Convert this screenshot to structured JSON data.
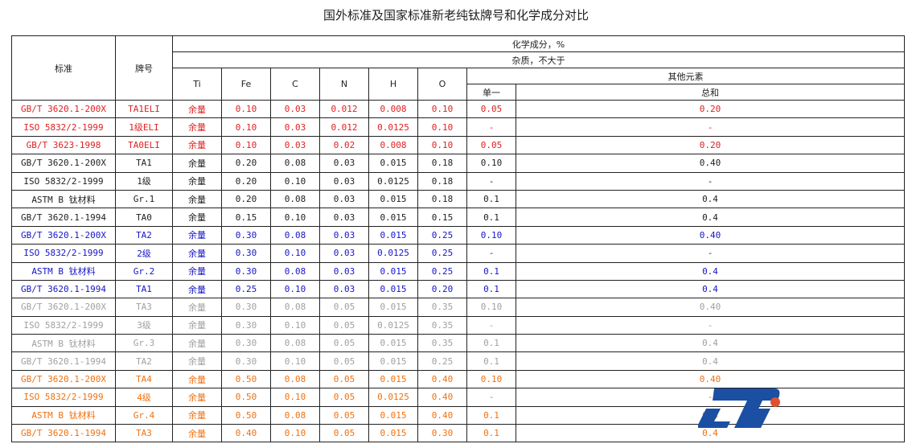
{
  "title": "国外标准及国家标准新老纯钛牌号和化学成分对比",
  "headers": {
    "standard": "标准",
    "grade": "牌号",
    "chem": "化学成分，%",
    "impurity": "杂质，不大于",
    "ti": "Ti",
    "fe": "Fe",
    "c": "C",
    "n": "N",
    "h": "H",
    "o": "O",
    "others": "其他元素",
    "single": "单一",
    "total": "总和"
  },
  "colors": {
    "red": "#e02020",
    "blue": "#1515c8",
    "gray": "#a0a0a0",
    "orange": "#f07010",
    "black": "#222222"
  },
  "rows": [
    [
      "red",
      "GB/T 3620.1-200X",
      "TA1ELI",
      "余量",
      "0.10",
      "0.03",
      "0.012",
      "0.008",
      "0.10",
      "0.05",
      "0.20"
    ],
    [
      "red",
      "ISO 5832/2-1999",
      "1级ELI",
      "余量",
      "0.10",
      "0.03",
      "0.012",
      "0.0125",
      "0.10",
      "-",
      "-"
    ],
    [
      "red",
      "GB/T 3623-1998",
      "TA0ELI",
      "余量",
      "0.10",
      "0.03",
      "0.02",
      "0.008",
      "0.10",
      "0.05",
      "0.20"
    ],
    [
      "black",
      "GB/T 3620.1-200X",
      "TA1",
      "余量",
      "0.20",
      "0.08",
      "0.03",
      "0.015",
      "0.18",
      "0.10",
      "0.40"
    ],
    [
      "black",
      "ISO 5832/2-1999",
      "1级",
      "余量",
      "0.20",
      "0.10",
      "0.03",
      "0.0125",
      "0.18",
      "-",
      "-"
    ],
    [
      "black",
      "ASTM B 钛材料",
      "Gr.1",
      "余量",
      "0.20",
      "0.08",
      "0.03",
      "0.015",
      "0.18",
      "0.1",
      "0.4"
    ],
    [
      "black",
      "GB/T 3620.1-1994",
      "TA0",
      "余量",
      "0.15",
      "0.10",
      "0.03",
      "0.015",
      "0.15",
      "0.1",
      "0.4"
    ],
    [
      "blue",
      "GB/T 3620.1-200X",
      "TA2",
      "余量",
      "0.30",
      "0.08",
      "0.03",
      "0.015",
      "0.25",
      "0.10",
      "0.40"
    ],
    [
      "blue",
      "ISO 5832/2-1999",
      "2级",
      "余量",
      "0.30",
      "0.10",
      "0.03",
      "0.0125",
      "0.25",
      "-",
      "-"
    ],
    [
      "blue",
      "ASTM B 钛材料",
      "Gr.2",
      "余量",
      "0.30",
      "0.08",
      "0.03",
      "0.015",
      "0.25",
      "0.1",
      "0.4"
    ],
    [
      "blue",
      "GB/T 3620.1-1994",
      "TA1",
      "余量",
      "0.25",
      "0.10",
      "0.03",
      "0.015",
      "0.20",
      "0.1",
      "0.4"
    ],
    [
      "gray",
      "GB/T 3620.1-200X",
      "TA3",
      "余量",
      "0.30",
      "0.08",
      "0.05",
      "0.015",
      "0.35",
      "0.10",
      "0.40"
    ],
    [
      "gray",
      "ISO 5832/2-1999",
      "3级",
      "余量",
      "0.30",
      "0.10",
      "0.05",
      "0.0125",
      "0.35",
      "-",
      "-"
    ],
    [
      "gray",
      "ASTM B 钛材料",
      "Gr.3",
      "余量",
      "0.30",
      "0.08",
      "0.05",
      "0.015",
      "0.35",
      "0.1",
      "0.4"
    ],
    [
      "gray",
      "GB/T 3620.1-1994",
      "TA2",
      "余量",
      "0.30",
      "0.10",
      "0.05",
      "0.015",
      "0.25",
      "0.1",
      "0.4"
    ],
    [
      "orange",
      "GB/T 3620.1-200X",
      "TA4",
      "余量",
      "0.50",
      "0.08",
      "0.05",
      "0.015",
      "0.40",
      "0.10",
      "0.40"
    ],
    [
      "orange",
      "ISO 5832/2-1999",
      "4级",
      "余量",
      "0.50",
      "0.10",
      "0.05",
      "0.0125",
      "0.40",
      "-",
      "-"
    ],
    [
      "orange",
      "ASTM B 钛材料",
      "Gr.4",
      "余量",
      "0.50",
      "0.08",
      "0.05",
      "0.015",
      "0.40",
      "0.1",
      "0.4"
    ],
    [
      "orange",
      "GB/T 3620.1-1994",
      "TA3",
      "余量",
      "0.40",
      "0.10",
      "0.05",
      "0.015",
      "0.30",
      "0.1",
      "0.4"
    ]
  ],
  "logo": {
    "text": "LTi",
    "icon": "company-logo"
  }
}
